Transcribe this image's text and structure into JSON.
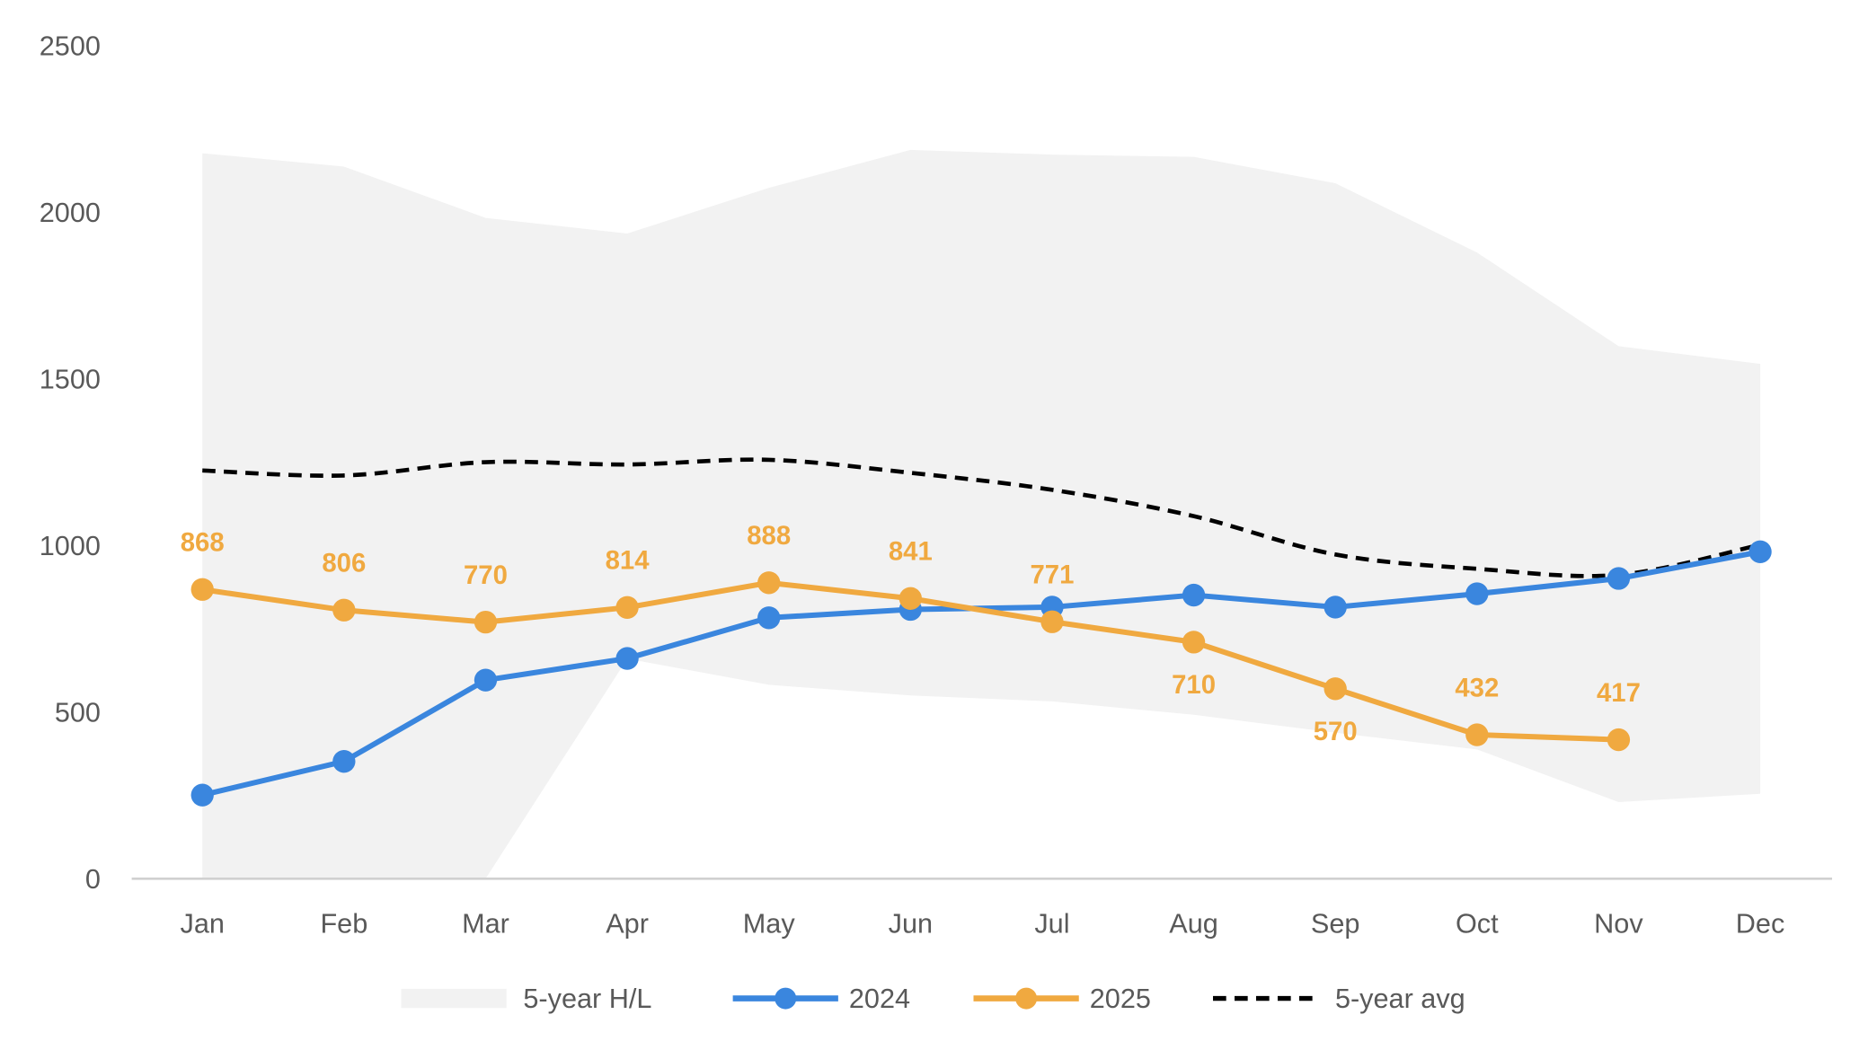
{
  "chart_data": {
    "type": "line",
    "title": "",
    "xlabel": "",
    "ylabel": "",
    "ylim": [
      0,
      2500
    ],
    "yticks": [
      "0",
      "500",
      "1000",
      "1500",
      "2000",
      "2500"
    ],
    "grid": false,
    "legend_placement": "bottom",
    "categories": [
      "Jan",
      "Feb",
      "Mar",
      "Apr",
      "May",
      "Jun",
      "Jul",
      "Aug",
      "Sep",
      "Oct",
      "Nov",
      "Dec"
    ],
    "band": {
      "name": "5-year H/L",
      "color": "#F2F2F2",
      "high": [
        2177,
        2137,
        1983,
        1936,
        2073,
        2187,
        2173,
        2166,
        2087,
        1879,
        1598,
        1545
      ],
      "low": [
        0,
        0,
        0,
        660,
        582,
        550,
        532,
        492,
        438,
        388,
        230,
        255
      ]
    },
    "series": [
      {
        "name": "2024",
        "color": "#3A86DE",
        "style": "solid-markers",
        "values": [
          251,
          352,
          596,
          661,
          783,
          808,
          815,
          851,
          815,
          855,
          901,
          981
        ]
      },
      {
        "name": "2025",
        "color": "#F0A940",
        "style": "solid-markers",
        "values": [
          868,
          806,
          770,
          814,
          888,
          841,
          771,
          710,
          570,
          432,
          417,
          null
        ],
        "data_labels": [
          "868",
          "806",
          "770",
          "814",
          "888",
          "841",
          "771",
          "710",
          "570",
          "432",
          "417"
        ],
        "label_side": [
          "above",
          "above",
          "above",
          "above",
          "above",
          "above",
          "above",
          "below",
          "below",
          "above",
          "above"
        ]
      },
      {
        "name": "5-year avg",
        "color": "#000000",
        "style": "dashed",
        "values": [
          1225,
          1210,
          1250,
          1243,
          1257,
          1218,
          1167,
          1088,
          973,
          930,
          912,
          1002
        ]
      }
    ]
  }
}
